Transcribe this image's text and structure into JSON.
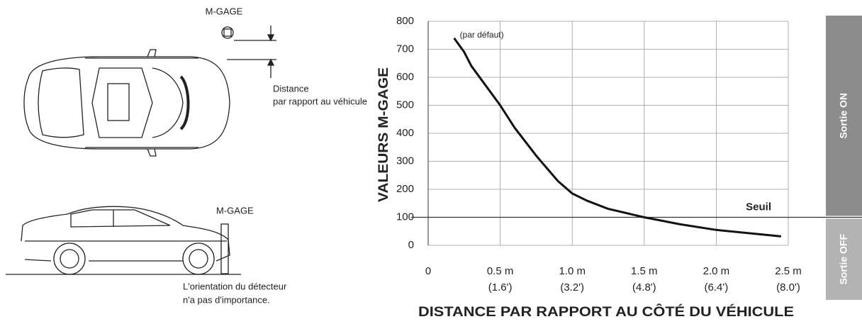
{
  "diagram": {
    "top_sensor_label": "M-GAGE",
    "distance_line1": "Distance",
    "distance_line2": "par rapport au véhicule",
    "side_sensor_label": "M-GAGE",
    "orientation_line1": "L'orientation du détecteur",
    "orientation_line2": "n'a pas d'importance."
  },
  "chart_data": {
    "type": "line",
    "x_label": "DISTANCE PAR RAPPORT AU CÔTÉ DU VÉHICULE",
    "y_label": "VALEURS M-GAGE",
    "annotation": "(par défaut)",
    "x": [
      0.18,
      0.25,
      0.3,
      0.4,
      0.5,
      0.6,
      0.75,
      0.9,
      1.0,
      1.1,
      1.25,
      1.5,
      1.75,
      2.0,
      2.25,
      2.45
    ],
    "values": [
      740,
      690,
      640,
      570,
      500,
      420,
      320,
      230,
      185,
      160,
      130,
      100,
      75,
      55,
      42,
      32
    ],
    "color": "#111111",
    "threshold": 100,
    "threshold_label": "Seuil",
    "output_zones": [
      {
        "label": "Sortie ON",
        "color": "#8c8c8c"
      },
      {
        "label": "Sortie OFF",
        "color": "#b3b3b3"
      }
    ],
    "xlim": [
      0,
      2.5
    ],
    "ylim": [
      0,
      800
    ],
    "xticks": [
      0,
      {
        "value": 0.5,
        "label": "0.5 m"
      },
      {
        "value": 1.0,
        "label": "1.0 m"
      },
      {
        "value": 1.5,
        "label": "1.5 m"
      },
      {
        "value": 2.0,
        "label": "2.0 m"
      },
      {
        "value": 2.5,
        "label": "2.5 m"
      }
    ],
    "xticks_secondary": [
      {
        "value": 0.5,
        "label": "(1.6')"
      },
      {
        "value": 1.0,
        "label": "(3.2')"
      },
      {
        "value": 1.5,
        "label": "(4.8')"
      },
      {
        "value": 2.0,
        "label": "(6.4')"
      },
      {
        "value": 2.5,
        "label": "(8.0')"
      }
    ],
    "yticks": [
      0,
      100,
      200,
      300,
      400,
      500,
      600,
      700,
      800
    ],
    "grid": true
  }
}
